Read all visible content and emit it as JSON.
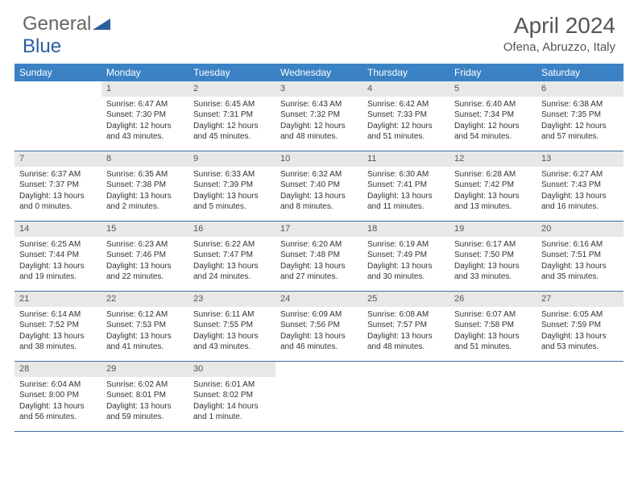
{
  "logo": {
    "part1": "General",
    "part2": "Blue"
  },
  "title": "April 2024",
  "location": "Ofena, Abruzzo, Italy",
  "colors": {
    "header_bg": "#3b82c4",
    "header_text": "#ffffff",
    "daynum_bg": "#e8e8e8",
    "border": "#3b6fa0",
    "logo_gray": "#666666",
    "logo_blue": "#2a5f9e"
  },
  "day_headers": [
    "Sunday",
    "Monday",
    "Tuesday",
    "Wednesday",
    "Thursday",
    "Friday",
    "Saturday"
  ],
  "weeks": [
    [
      {
        "n": "",
        "sr": "",
        "ss": "",
        "dl": ""
      },
      {
        "n": "1",
        "sr": "Sunrise: 6:47 AM",
        "ss": "Sunset: 7:30 PM",
        "dl": "Daylight: 12 hours and 43 minutes."
      },
      {
        "n": "2",
        "sr": "Sunrise: 6:45 AM",
        "ss": "Sunset: 7:31 PM",
        "dl": "Daylight: 12 hours and 45 minutes."
      },
      {
        "n": "3",
        "sr": "Sunrise: 6:43 AM",
        "ss": "Sunset: 7:32 PM",
        "dl": "Daylight: 12 hours and 48 minutes."
      },
      {
        "n": "4",
        "sr": "Sunrise: 6:42 AM",
        "ss": "Sunset: 7:33 PM",
        "dl": "Daylight: 12 hours and 51 minutes."
      },
      {
        "n": "5",
        "sr": "Sunrise: 6:40 AM",
        "ss": "Sunset: 7:34 PM",
        "dl": "Daylight: 12 hours and 54 minutes."
      },
      {
        "n": "6",
        "sr": "Sunrise: 6:38 AM",
        "ss": "Sunset: 7:35 PM",
        "dl": "Daylight: 12 hours and 57 minutes."
      }
    ],
    [
      {
        "n": "7",
        "sr": "Sunrise: 6:37 AM",
        "ss": "Sunset: 7:37 PM",
        "dl": "Daylight: 13 hours and 0 minutes."
      },
      {
        "n": "8",
        "sr": "Sunrise: 6:35 AM",
        "ss": "Sunset: 7:38 PM",
        "dl": "Daylight: 13 hours and 2 minutes."
      },
      {
        "n": "9",
        "sr": "Sunrise: 6:33 AM",
        "ss": "Sunset: 7:39 PM",
        "dl": "Daylight: 13 hours and 5 minutes."
      },
      {
        "n": "10",
        "sr": "Sunrise: 6:32 AM",
        "ss": "Sunset: 7:40 PM",
        "dl": "Daylight: 13 hours and 8 minutes."
      },
      {
        "n": "11",
        "sr": "Sunrise: 6:30 AM",
        "ss": "Sunset: 7:41 PM",
        "dl": "Daylight: 13 hours and 11 minutes."
      },
      {
        "n": "12",
        "sr": "Sunrise: 6:28 AM",
        "ss": "Sunset: 7:42 PM",
        "dl": "Daylight: 13 hours and 13 minutes."
      },
      {
        "n": "13",
        "sr": "Sunrise: 6:27 AM",
        "ss": "Sunset: 7:43 PM",
        "dl": "Daylight: 13 hours and 16 minutes."
      }
    ],
    [
      {
        "n": "14",
        "sr": "Sunrise: 6:25 AM",
        "ss": "Sunset: 7:44 PM",
        "dl": "Daylight: 13 hours and 19 minutes."
      },
      {
        "n": "15",
        "sr": "Sunrise: 6:23 AM",
        "ss": "Sunset: 7:46 PM",
        "dl": "Daylight: 13 hours and 22 minutes."
      },
      {
        "n": "16",
        "sr": "Sunrise: 6:22 AM",
        "ss": "Sunset: 7:47 PM",
        "dl": "Daylight: 13 hours and 24 minutes."
      },
      {
        "n": "17",
        "sr": "Sunrise: 6:20 AM",
        "ss": "Sunset: 7:48 PM",
        "dl": "Daylight: 13 hours and 27 minutes."
      },
      {
        "n": "18",
        "sr": "Sunrise: 6:19 AM",
        "ss": "Sunset: 7:49 PM",
        "dl": "Daylight: 13 hours and 30 minutes."
      },
      {
        "n": "19",
        "sr": "Sunrise: 6:17 AM",
        "ss": "Sunset: 7:50 PM",
        "dl": "Daylight: 13 hours and 33 minutes."
      },
      {
        "n": "20",
        "sr": "Sunrise: 6:16 AM",
        "ss": "Sunset: 7:51 PM",
        "dl": "Daylight: 13 hours and 35 minutes."
      }
    ],
    [
      {
        "n": "21",
        "sr": "Sunrise: 6:14 AM",
        "ss": "Sunset: 7:52 PM",
        "dl": "Daylight: 13 hours and 38 minutes."
      },
      {
        "n": "22",
        "sr": "Sunrise: 6:12 AM",
        "ss": "Sunset: 7:53 PM",
        "dl": "Daylight: 13 hours and 41 minutes."
      },
      {
        "n": "23",
        "sr": "Sunrise: 6:11 AM",
        "ss": "Sunset: 7:55 PM",
        "dl": "Daylight: 13 hours and 43 minutes."
      },
      {
        "n": "24",
        "sr": "Sunrise: 6:09 AM",
        "ss": "Sunset: 7:56 PM",
        "dl": "Daylight: 13 hours and 46 minutes."
      },
      {
        "n": "25",
        "sr": "Sunrise: 6:08 AM",
        "ss": "Sunset: 7:57 PM",
        "dl": "Daylight: 13 hours and 48 minutes."
      },
      {
        "n": "26",
        "sr": "Sunrise: 6:07 AM",
        "ss": "Sunset: 7:58 PM",
        "dl": "Daylight: 13 hours and 51 minutes."
      },
      {
        "n": "27",
        "sr": "Sunrise: 6:05 AM",
        "ss": "Sunset: 7:59 PM",
        "dl": "Daylight: 13 hours and 53 minutes."
      }
    ],
    [
      {
        "n": "28",
        "sr": "Sunrise: 6:04 AM",
        "ss": "Sunset: 8:00 PM",
        "dl": "Daylight: 13 hours and 56 minutes."
      },
      {
        "n": "29",
        "sr": "Sunrise: 6:02 AM",
        "ss": "Sunset: 8:01 PM",
        "dl": "Daylight: 13 hours and 59 minutes."
      },
      {
        "n": "30",
        "sr": "Sunrise: 6:01 AM",
        "ss": "Sunset: 8:02 PM",
        "dl": "Daylight: 14 hours and 1 minute."
      },
      {
        "n": "",
        "sr": "",
        "ss": "",
        "dl": ""
      },
      {
        "n": "",
        "sr": "",
        "ss": "",
        "dl": ""
      },
      {
        "n": "",
        "sr": "",
        "ss": "",
        "dl": ""
      },
      {
        "n": "",
        "sr": "",
        "ss": "",
        "dl": ""
      }
    ]
  ]
}
